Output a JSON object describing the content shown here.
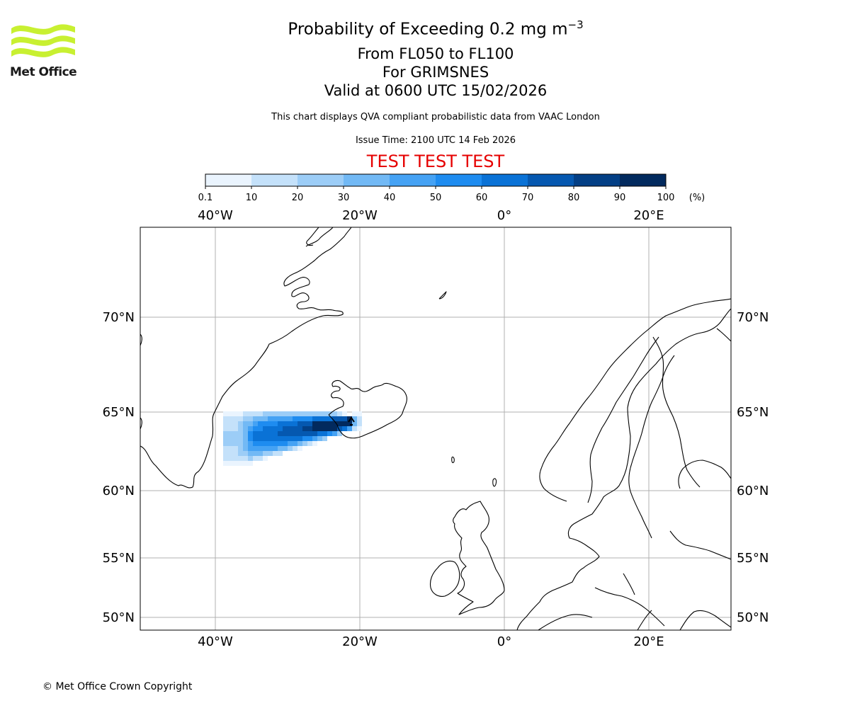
{
  "header": {
    "title_prefix": "Probability of Exceeding 0.2 mg m",
    "title_exponent": "−3",
    "flight_levels": "From FL050 to FL100",
    "location": "For GRIMSNES",
    "valid_time": "Valid at 0600 UTC 15/02/2026",
    "note": "This chart displays QVA compliant probabilistic data from VAAC London",
    "issue_time": "Issue Time: 2100 UTC 14 Feb 2026",
    "test_banner": "TEST TEST TEST"
  },
  "logo": {
    "name": "Met Office",
    "color": "#c8f031"
  },
  "colorbar": {
    "ticks": [
      "0.1",
      "10",
      "20",
      "30",
      "40",
      "50",
      "60",
      "70",
      "80",
      "90",
      "100"
    ],
    "unit": "(%)",
    "colors": [
      "#eaf4fe",
      "#c4e1fa",
      "#9ccdf7",
      "#72b9f5",
      "#45a2f4",
      "#1e8cf0",
      "#0a72d6",
      "#0558b0",
      "#033f85",
      "#022a5e"
    ]
  },
  "map": {
    "lon_labels": [
      "40°W",
      "20°W",
      "0°",
      "20°E"
    ],
    "lat_labels": [
      "70°N",
      "65°N",
      "60°N",
      "55°N",
      "50°N"
    ],
    "plume_levels": [
      10,
      20,
      30,
      40,
      50,
      60,
      70,
      80,
      90
    ]
  },
  "footer": {
    "copyright": "© Met Office Crown Copyright"
  }
}
